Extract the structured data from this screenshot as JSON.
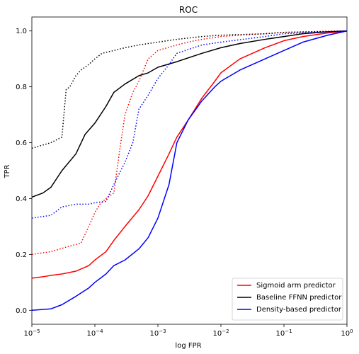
{
  "chart_data": {
    "type": "line",
    "title": "ROC",
    "xlabel": "log FPR",
    "ylabel": "TPR",
    "xscale": "log",
    "xlim": [
      1e-05,
      1
    ],
    "ylim": [
      -0.05,
      1.05
    ],
    "grid": false,
    "legend_position": "bottom-right",
    "x_ticks": [
      {
        "value": 1e-05,
        "base": "10",
        "exp": "−5"
      },
      {
        "value": 0.0001,
        "base": "10",
        "exp": "−4"
      },
      {
        "value": 0.001,
        "base": "10",
        "exp": "−3"
      },
      {
        "value": 0.01,
        "base": "10",
        "exp": "−2"
      },
      {
        "value": 0.1,
        "base": "10",
        "exp": "−1"
      },
      {
        "value": 1,
        "base": "10",
        "exp": "0"
      }
    ],
    "y_ticks": [
      {
        "value": 0.0,
        "label": "0.0"
      },
      {
        "value": 0.2,
        "label": "0.2"
      },
      {
        "value": 0.4,
        "label": "0.4"
      },
      {
        "value": 0.6,
        "label": "0.6"
      },
      {
        "value": 0.8,
        "label": "0.8"
      },
      {
        "value": 1.0,
        "label": "1.0"
      }
    ],
    "series": [
      {
        "name": "Sigmoid arm predictor",
        "color": "#ff0000",
        "style": "solid",
        "x": [
          1e-05,
          1.5e-05,
          2e-05,
          3e-05,
          5e-05,
          8e-05,
          0.0001,
          0.00015,
          0.0002,
          0.0003,
          0.0005,
          0.0007,
          0.001,
          0.0015,
          0.002,
          0.003,
          0.005,
          0.008,
          0.01,
          0.02,
          0.05,
          0.1,
          0.2,
          0.5,
          1
        ],
        "y": [
          0.115,
          0.12,
          0.125,
          0.13,
          0.14,
          0.16,
          0.18,
          0.21,
          0.25,
          0.3,
          0.36,
          0.41,
          0.48,
          0.56,
          0.62,
          0.68,
          0.76,
          0.82,
          0.85,
          0.9,
          0.94,
          0.965,
          0.98,
          0.993,
          1.0
        ]
      },
      {
        "name": "Baseline FFNN predictor",
        "color": "#000000",
        "style": "solid",
        "x": [
          1e-05,
          1.5e-05,
          2e-05,
          3e-05,
          5e-05,
          7e-05,
          0.0001,
          0.00015,
          0.0002,
          0.0003,
          0.0005,
          0.0007,
          0.001,
          0.002,
          0.005,
          0.01,
          0.02,
          0.05,
          0.1,
          0.2,
          0.5,
          1
        ],
        "y": [
          0.405,
          0.42,
          0.44,
          0.5,
          0.56,
          0.63,
          0.67,
          0.73,
          0.78,
          0.81,
          0.84,
          0.85,
          0.87,
          0.89,
          0.92,
          0.94,
          0.955,
          0.97,
          0.98,
          0.99,
          0.997,
          1.0
        ]
      },
      {
        "name": "Density-based predictor",
        "color": "#0000ff",
        "style": "solid",
        "x": [
          1e-05,
          2e-05,
          3e-05,
          5e-05,
          8e-05,
          0.0001,
          0.00015,
          0.0002,
          0.0003,
          0.0005,
          0.0007,
          0.001,
          0.0015,
          0.002,
          0.003,
          0.005,
          0.008,
          0.01,
          0.02,
          0.05,
          0.1,
          0.2,
          0.5,
          1
        ],
        "y": [
          0.0,
          0.005,
          0.02,
          0.05,
          0.08,
          0.1,
          0.13,
          0.16,
          0.18,
          0.22,
          0.26,
          0.33,
          0.45,
          0.6,
          0.68,
          0.75,
          0.8,
          0.82,
          0.86,
          0.9,
          0.93,
          0.96,
          0.985,
          1.0
        ]
      },
      {
        "name": "",
        "color": "#ff0000",
        "style": "dotted",
        "x": [
          1e-05,
          2e-05,
          4e-05,
          6e-05,
          8e-05,
          0.0001,
          0.00012,
          0.00015,
          0.0002,
          0.00025,
          0.0003,
          0.0004,
          0.0005,
          0.0007,
          0.001,
          0.002,
          0.003,
          0.005,
          0.01,
          0.02,
          0.05,
          0.1,
          0.3,
          1
        ],
        "y": [
          0.2,
          0.21,
          0.23,
          0.24,
          0.3,
          0.35,
          0.38,
          0.4,
          0.42,
          0.58,
          0.7,
          0.78,
          0.82,
          0.9,
          0.93,
          0.95,
          0.96,
          0.97,
          0.98,
          0.985,
          0.99,
          0.995,
          0.998,
          1.0
        ]
      },
      {
        "name": "",
        "color": "#000000",
        "style": "dotted",
        "x": [
          1e-05,
          2e-05,
          3e-05,
          3.5e-05,
          4e-05,
          5e-05,
          6e-05,
          8e-05,
          0.0001,
          0.00013,
          0.0002,
          0.0003,
          0.0005,
          0.001,
          0.002,
          0.005,
          0.01,
          0.05,
          0.1,
          0.5,
          1
        ],
        "y": [
          0.58,
          0.6,
          0.62,
          0.79,
          0.8,
          0.84,
          0.86,
          0.88,
          0.9,
          0.92,
          0.93,
          0.94,
          0.95,
          0.96,
          0.97,
          0.98,
          0.985,
          0.99,
          0.995,
          0.998,
          1.0
        ]
      },
      {
        "name": "",
        "color": "#0000ff",
        "style": "dotted",
        "x": [
          1e-05,
          2e-05,
          3e-05,
          5e-05,
          8e-05,
          0.0001,
          0.00015,
          0.0002,
          0.0003,
          0.0004,
          0.0005,
          0.0007,
          0.001,
          0.0015,
          0.002,
          0.005,
          0.01,
          0.05,
          0.1,
          0.5,
          1
        ],
        "y": [
          0.33,
          0.34,
          0.37,
          0.38,
          0.38,
          0.385,
          0.39,
          0.45,
          0.53,
          0.6,
          0.72,
          0.77,
          0.83,
          0.88,
          0.92,
          0.95,
          0.96,
          0.98,
          0.99,
          0.997,
          1.0
        ]
      }
    ]
  }
}
